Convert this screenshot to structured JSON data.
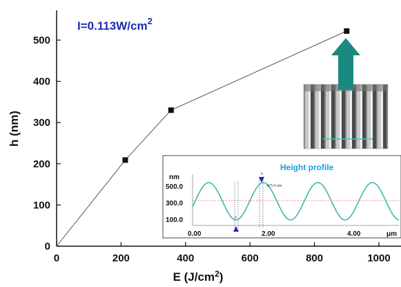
{
  "chart_data": {
    "type": "scatter",
    "x": [
      0,
      213,
      355,
      900
    ],
    "y": [
      0,
      209,
      330,
      522
    ],
    "xlabel": "E (J/cm",
    "xlabel_superscript": "2",
    "xlabel_suffix": ")",
    "ylabel": "h (nm)",
    "xlim": [
      0,
      1050
    ],
    "ylim": [
      0,
      560
    ],
    "xticks": [
      "0",
      "200",
      "400",
      "600",
      "800",
      "1000"
    ],
    "yticks": [
      "0",
      "100",
      "200",
      "300",
      "400",
      "500"
    ],
    "xtick_values": [
      0,
      200,
      400,
      600,
      800,
      1000
    ],
    "ytick_values": [
      0,
      100,
      200,
      300,
      400,
      500
    ],
    "marker_color": "#111111",
    "line_color": "#555555",
    "annotation": "I=0.113W/cm",
    "annotation_superscript": "2",
    "annotation_color": "#1c2bb0"
  },
  "inset": {
    "title": "Height profile",
    "yunit": "nm",
    "xunit": "μm",
    "yticks": [
      "500.0",
      "300.0",
      "100.0"
    ],
    "xticks": [
      "0.00",
      "2.00",
      "4.00"
    ],
    "marker_label": "425.0 nm",
    "marker_a": "A",
    "marker_b": "A",
    "curve_color": "#3cb8b0",
    "title_color": "#1a9ee0",
    "refline_color": "#e06060"
  },
  "arrow_color": "#1a8a80"
}
